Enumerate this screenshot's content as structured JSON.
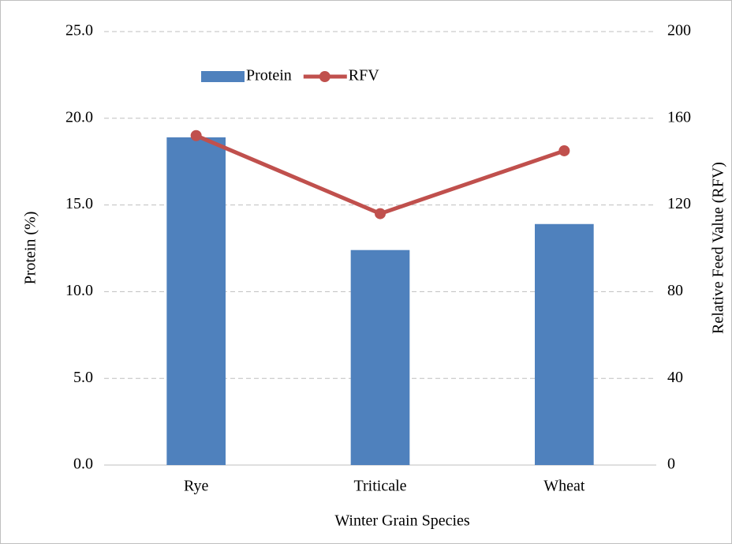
{
  "chart_data": {
    "type": "bar",
    "xlabel": "Winter Grain Species",
    "ylabel": "Protein (%)",
    "y2label": "Relative Feed Value (RFV)",
    "categories": [
      "Rye",
      "Triticale",
      "Wheat"
    ],
    "series": [
      {
        "name": "Protein",
        "type": "bar",
        "color": "#4f81bd",
        "axis": "y",
        "values": [
          18.9,
          12.4,
          13.9
        ]
      },
      {
        "name": "RFV",
        "type": "line",
        "color": "#c0504d",
        "axis": "y2",
        "values": [
          152,
          116,
          145
        ]
      }
    ],
    "ylim": [
      0,
      25
    ],
    "yticks": [
      {
        "value": 0,
        "label": "0.0"
      },
      {
        "value": 5,
        "label": "5.0"
      },
      {
        "value": 10,
        "label": "10.0"
      },
      {
        "value": 15,
        "label": "15.0"
      },
      {
        "value": 20,
        "label": "20.0"
      },
      {
        "value": 25,
        "label": "25.0"
      }
    ],
    "y2lim": [
      0,
      200
    ],
    "y2ticks": [
      0,
      40,
      80,
      120,
      160,
      200
    ],
    "grid": true,
    "legend": "top-left"
  }
}
